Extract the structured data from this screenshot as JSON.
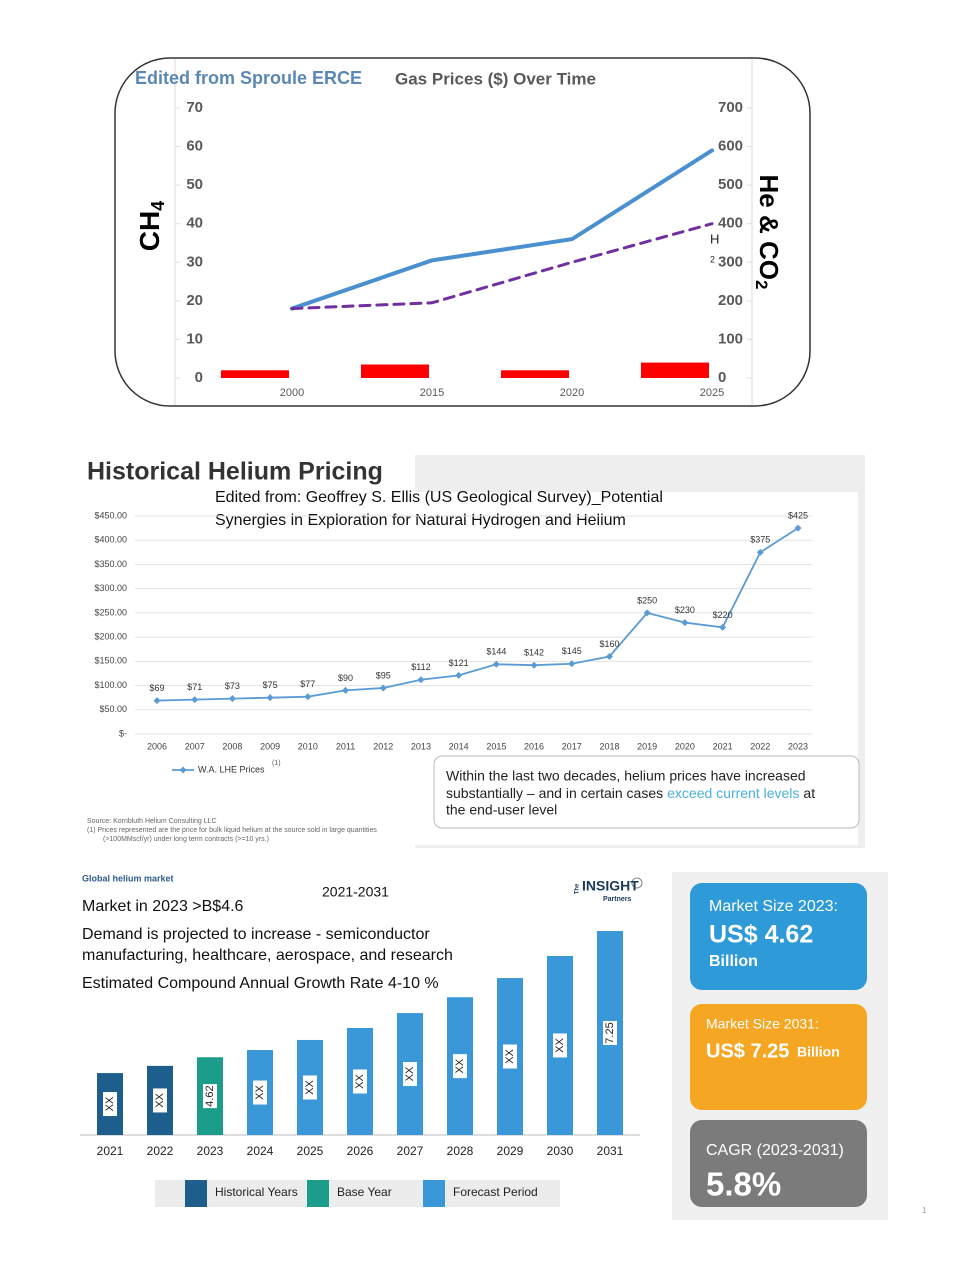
{
  "chart_data": [
    {
      "type": "combo",
      "annotation": "Edited from Sproule ERCE",
      "title": "Gas Prices ($) Over Time",
      "y_label": [
        "CH",
        "4"
      ],
      "y2_label": [
        "He & CO",
        "2"
      ],
      "side_notes": [
        "H",
        "2"
      ],
      "categories": [
        "2000",
        "2015",
        "2020",
        "2025"
      ],
      "ylim": [
        0,
        70
      ],
      "yticks": [
        0,
        10,
        20,
        30,
        40,
        50,
        60,
        70
      ],
      "y2lim": [
        0,
        700
      ],
      "y2ticks": [
        0,
        100,
        200,
        300,
        400,
        500,
        600,
        700
      ],
      "series": [
        {
          "type": "bar",
          "color": "#ff0000",
          "values": [
            2,
            3.5,
            2,
            4
          ]
        },
        {
          "type": "line",
          "color": "#4a8fd0",
          "values": [
            18,
            30.5,
            36,
            59
          ]
        },
        {
          "type": "line",
          "color": "#7030a0",
          "dashed": true,
          "values": [
            18,
            19.5,
            30,
            40
          ]
        }
      ]
    },
    {
      "type": "line",
      "title": "Historical Helium Pricing",
      "annotation_lines": [
        "Edited from: Geoffrey S. Ellis (US Geological Survey)_Potential",
        "Synergies in Exploration for Natural Hydrogen and Helium"
      ],
      "categories": [
        "2006",
        "2007",
        "2008",
        "2009",
        "2010",
        "2011",
        "2012",
        "2013",
        "2014",
        "2015",
        "2016",
        "2017",
        "2018",
        "2019",
        "2020",
        "2021",
        "2022",
        "2023"
      ],
      "series": [
        {
          "name": "W.A. LHE Prices",
          "color": "#5b9bd5",
          "values": [
            69,
            71,
            73,
            75,
            77,
            90,
            95,
            112,
            121,
            144,
            142,
            145,
            160,
            250,
            230,
            220,
            375,
            425
          ],
          "value_labels": [
            "$69",
            "$71",
            "$73",
            "$75",
            "$77",
            "$90",
            "$95",
            "$112",
            "$121",
            "$144",
            "$142",
            "$145",
            "$160",
            "$250",
            "$230",
            "$220",
            "$375",
            "$425"
          ]
        }
      ],
      "footnote_mark": "(1)",
      "ylim": [
        0,
        450
      ],
      "yticks": [
        {
          "value": 0,
          "label": "$-"
        },
        {
          "value": 50,
          "label": "$50.00"
        },
        {
          "value": 100,
          "label": "$100.00"
        },
        {
          "value": 150,
          "label": "$150.00"
        },
        {
          "value": 200,
          "label": "$200.00"
        },
        {
          "value": 250,
          "label": "$250.00"
        },
        {
          "value": 300,
          "label": "$300.00"
        },
        {
          "value": 350,
          "label": "$350.00"
        },
        {
          "value": 400,
          "label": "$400.00"
        },
        {
          "value": 450,
          "label": "$450.00"
        }
      ],
      "grid": true,
      "callout": [
        "Within the last two decades, helium prices have increased",
        "substantially – and in certain cases",
        "exceed current levels",
        "at",
        "the end-user level"
      ],
      "source": [
        "Source: Kornbluth Helium Consulting LLC",
        "(1)   Prices represented are the price for bulk liquid helium at the source sold in large quantities",
        "(>100MMscf/yr) under long term contracts (>=10 yrs.)"
      ]
    },
    {
      "type": "bar",
      "title": "Global helium market",
      "subtitle": "2021-2031",
      "notes": [
        "Market in 2023 >B$4.6",
        "Demand is projected to increase - semiconductor",
        "manufacturing, healthcare, aerospace, and research",
        "Estimated Compound Annual Growth Rate 4-10 %"
      ],
      "logo": [
        "The",
        "INSIGHT",
        "Partners"
      ],
      "categories": [
        "2021",
        "2022",
        "2023",
        "2024",
        "2025",
        "2026",
        "2027",
        "2028",
        "2029",
        "2030",
        "2031"
      ],
      "values": [
        4.29,
        4.44,
        4.62,
        4.77,
        4.98,
        5.23,
        5.54,
        5.87,
        6.27,
        6.73,
        7.25
      ],
      "value_labels": [
        "XX",
        "XX",
        "4.62",
        "XX",
        "XX",
        "XX",
        "XX",
        "XX",
        "XX",
        "XX",
        "7.25"
      ],
      "colors": [
        "#1d5e8c",
        "#1d5e8c",
        "#1c9c8a",
        "#3a98d8",
        "#3a98d8",
        "#3a98d8",
        "#3a98d8",
        "#3a98d8",
        "#3a98d8",
        "#3a98d8",
        "#3a98d8"
      ],
      "ylim": [
        3,
        7.5
      ],
      "legend": [
        {
          "name": "Historical Years",
          "color": "#1d5e8c"
        },
        {
          "name": "Base Year",
          "color": "#1c9c8a"
        },
        {
          "name": "Forecast Period",
          "color": "#3a98d8"
        }
      ],
      "cards": [
        {
          "color": "#2e9ad8",
          "lines": [
            "Market Size 2023:",
            "US$ 4.62",
            "Billion"
          ]
        },
        {
          "color": "#f5a623",
          "lines": [
            "Market Size 2031:",
            "US$ 7.25",
            "Billion"
          ]
        },
        {
          "color": "#7b7b7b",
          "lines": [
            "CAGR (2023-2031)",
            "5.8%"
          ]
        }
      ],
      "page_number": "1"
    }
  ]
}
